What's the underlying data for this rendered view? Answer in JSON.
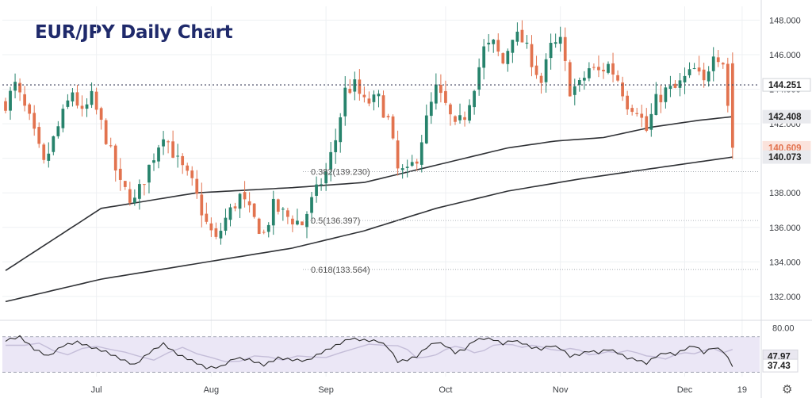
{
  "title": "EUR/JPY Daily Chart",
  "colors": {
    "up": "#27836c",
    "down": "#e2734f",
    "ma": "#2f3135",
    "rsi": "#2a2a2a",
    "rsi_ma": "#c4bdd8",
    "rsi_band": "#ebe7f6",
    "grid": "#eef0f3",
    "level": "#3a3c5a"
  },
  "icons": {
    "settings": "gear-icon"
  },
  "chart_data": {
    "type": "candlestick",
    "title": "EUR/JPY Daily Chart",
    "ylim": [
      130.8,
      148.8
    ],
    "y_ticks": [
      "148.000",
      "146.000",
      "144.000",
      "142.000",
      "140.000",
      "138.000",
      "136.000",
      "134.000",
      "132.000"
    ],
    "x_ticks": [
      "Jul",
      "Aug",
      "Sep",
      "Oct",
      "Nov",
      "Dec",
      "19"
    ],
    "x_tick_index": [
      19,
      43,
      67,
      92,
      116,
      142,
      154
    ],
    "n_bars": 158,
    "horizontal_level": {
      "value": 144.251,
      "label": "144.251"
    },
    "fib_levels": [
      {
        "label": "0.382(139.230)",
        "value": 139.23
      },
      {
        "label": "0.5(136.397)",
        "value": 136.397
      },
      {
        "label": "0.618(133.564)",
        "value": 133.564
      }
    ],
    "price_labels": [
      {
        "text": "144.251",
        "value": 144.251,
        "style": "level"
      },
      {
        "text": "142.408",
        "value": 142.408,
        "style": "ma"
      },
      {
        "text": "140.609",
        "value": 140.609,
        "style": "price"
      },
      {
        "text": "140.073",
        "value": 140.073,
        "style": "ma"
      }
    ],
    "anchors": [
      [
        0,
        143.2
      ],
      [
        2,
        144.2
      ],
      [
        5,
        142.2
      ],
      [
        8,
        139.6
      ],
      [
        11,
        141.8
      ],
      [
        14,
        143.9
      ],
      [
        16,
        142.5
      ],
      [
        18,
        143.5
      ],
      [
        21,
        141.2
      ],
      [
        24,
        138.4
      ],
      [
        27,
        137.5
      ],
      [
        30,
        139.5
      ],
      [
        33,
        141.5
      ],
      [
        36,
        139.8
      ],
      [
        39,
        138.5
      ],
      [
        42,
        136.2
      ],
      [
        44,
        135.2
      ],
      [
        46,
        136.5
      ],
      [
        49,
        137.8
      ],
      [
        52,
        136.4
      ],
      [
        54,
        135.6
      ],
      [
        56,
        137.2
      ],
      [
        59,
        136.6
      ],
      [
        62,
        136.2
      ],
      [
        64,
        137.5
      ],
      [
        67,
        139.2
      ],
      [
        69,
        141.1
      ],
      [
        71,
        143.9
      ],
      [
        73,
        144.2
      ],
      [
        75,
        143.2
      ],
      [
        78,
        143.4
      ],
      [
        80,
        142.2
      ],
      [
        82,
        139.3
      ],
      [
        84,
        139.1
      ],
      [
        86,
        140.1
      ],
      [
        88,
        142.2
      ],
      [
        90,
        144.0
      ],
      [
        92,
        143.0
      ],
      [
        94,
        141.7
      ],
      [
        96,
        142.5
      ],
      [
        98,
        144.3
      ],
      [
        100,
        146.3
      ],
      [
        102,
        146.6
      ],
      [
        104,
        145.5
      ],
      [
        106,
        147.2
      ],
      [
        108,
        146.8
      ],
      [
        110,
        145.7
      ],
      [
        112,
        144.4
      ],
      [
        114,
        146.4
      ],
      [
        116,
        146.7
      ],
      [
        118,
        144.0
      ],
      [
        120,
        144.2
      ],
      [
        122,
        145.2
      ],
      [
        124,
        145.0
      ],
      [
        126,
        145.4
      ],
      [
        128,
        144.6
      ],
      [
        130,
        143.2
      ],
      [
        132,
        142.9
      ],
      [
        134,
        141.6
      ],
      [
        136,
        143.3
      ],
      [
        138,
        143.9
      ],
      [
        140,
        144.0
      ],
      [
        142,
        144.6
      ],
      [
        144,
        145.1
      ],
      [
        146,
        144.3
      ],
      [
        148,
        146.3
      ],
      [
        150,
        145.6
      ],
      [
        152,
        140.6
      ],
      [
        157,
        140.6
      ]
    ],
    "ma100": [
      [
        0,
        133.5
      ],
      [
        20,
        137.1
      ],
      [
        40,
        138.0
      ],
      [
        60,
        138.3
      ],
      [
        75,
        138.6
      ],
      [
        90,
        139.6
      ],
      [
        105,
        140.6
      ],
      [
        115,
        141.0
      ],
      [
        125,
        141.2
      ],
      [
        135,
        141.8
      ],
      [
        145,
        142.2
      ],
      [
        152,
        142.41
      ]
    ],
    "ma200": [
      [
        0,
        131.7
      ],
      [
        20,
        133.0
      ],
      [
        40,
        133.9
      ],
      [
        60,
        134.8
      ],
      [
        75,
        135.8
      ],
      [
        90,
        137.1
      ],
      [
        105,
        138.1
      ],
      [
        120,
        138.8
      ],
      [
        135,
        139.4
      ],
      [
        152,
        140.07
      ]
    ],
    "rsi": {
      "ylim": [
        25,
        85
      ],
      "tick": "80.00",
      "levels": [
        70,
        30
      ],
      "labels": [
        {
          "text": "47.97",
          "value": 47.97
        },
        {
          "text": "37.43",
          "value": 37.43
        }
      ],
      "anchors": [
        [
          0,
          66
        ],
        [
          3,
          70
        ],
        [
          6,
          56
        ],
        [
          9,
          48
        ],
        [
          12,
          60
        ],
        [
          15,
          64
        ],
        [
          18,
          58
        ],
        [
          21,
          53
        ],
        [
          24,
          45
        ],
        [
          27,
          38
        ],
        [
          30,
          52
        ],
        [
          33,
          62
        ],
        [
          36,
          50
        ],
        [
          39,
          43
        ],
        [
          42,
          35
        ],
        [
          45,
          36
        ],
        [
          48,
          46
        ],
        [
          51,
          44
        ],
        [
          54,
          38
        ],
        [
          57,
          46
        ],
        [
          60,
          44
        ],
        [
          63,
          43
        ],
        [
          66,
          52
        ],
        [
          69,
          60
        ],
        [
          72,
          68
        ],
        [
          75,
          66
        ],
        [
          78,
          65
        ],
        [
          80,
          58
        ],
        [
          82,
          42
        ],
        [
          84,
          44
        ],
        [
          86,
          48
        ],
        [
          88,
          58
        ],
        [
          90,
          64
        ],
        [
          92,
          60
        ],
        [
          94,
          52
        ],
        [
          96,
          56
        ],
        [
          98,
          66
        ],
        [
          100,
          68
        ],
        [
          102,
          67
        ],
        [
          104,
          62
        ],
        [
          106,
          66
        ],
        [
          108,
          63
        ],
        [
          110,
          58
        ],
        [
          112,
          56
        ],
        [
          114,
          60
        ],
        [
          116,
          57
        ],
        [
          118,
          48
        ],
        [
          120,
          50
        ],
        [
          122,
          54
        ],
        [
          124,
          52
        ],
        [
          126,
          56
        ],
        [
          128,
          52
        ],
        [
          130,
          46
        ],
        [
          132,
          44
        ],
        [
          134,
          40
        ],
        [
          136,
          48
        ],
        [
          138,
          52
        ],
        [
          140,
          50
        ],
        [
          142,
          56
        ],
        [
          144,
          60
        ],
        [
          146,
          52
        ],
        [
          148,
          58
        ],
        [
          150,
          54
        ],
        [
          152,
          37.43
        ],
        [
          157,
          37.43
        ]
      ]
    }
  }
}
